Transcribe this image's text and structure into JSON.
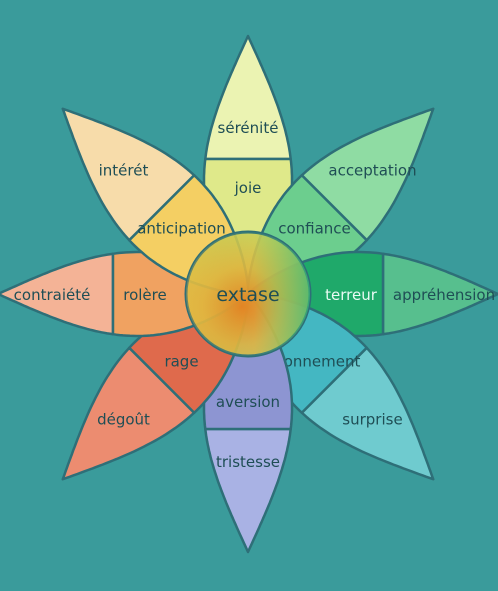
{
  "center": {
    "label": "extase"
  },
  "petals": [
    {
      "key": "top",
      "inner": "joie",
      "outer": "sérénité",
      "inner_color": "#dfe98a",
      "outer_color": "#ebf3b2"
    },
    {
      "key": "top-right",
      "inner": "confiance",
      "outer": "acceptation",
      "inner_color": "#6cce8e",
      "outer_color": "#8fdca3"
    },
    {
      "key": "right",
      "inner": "terreur",
      "outer": "appréhension",
      "inner_color": "#1fa96a",
      "outer_color": "#57bf8e",
      "inner_light": true
    },
    {
      "key": "bottom-right",
      "inner": "étonnement",
      "outer": "surprise",
      "inner_color": "#44b7c2",
      "outer_color": "#6fcbcf"
    },
    {
      "key": "bottom",
      "inner": "aversion",
      "outer": "tristesse",
      "inner_color": "#8d95d2",
      "outer_color": "#a9b2e4"
    },
    {
      "key": "bottom-left",
      "inner": "rage",
      "outer": "dégoût",
      "inner_color": "#df6a4c",
      "outer_color": "#ec8c70"
    },
    {
      "key": "left",
      "inner": "rolère",
      "outer": "contraiété",
      "inner_color": "#f0a261",
      "outer_color": "#f4b396"
    },
    {
      "key": "top-left",
      "inner": "anticipation",
      "outer": "intérét",
      "inner_color": "#f4cf63",
      "outer_color": "#f7dcaa"
    }
  ]
}
